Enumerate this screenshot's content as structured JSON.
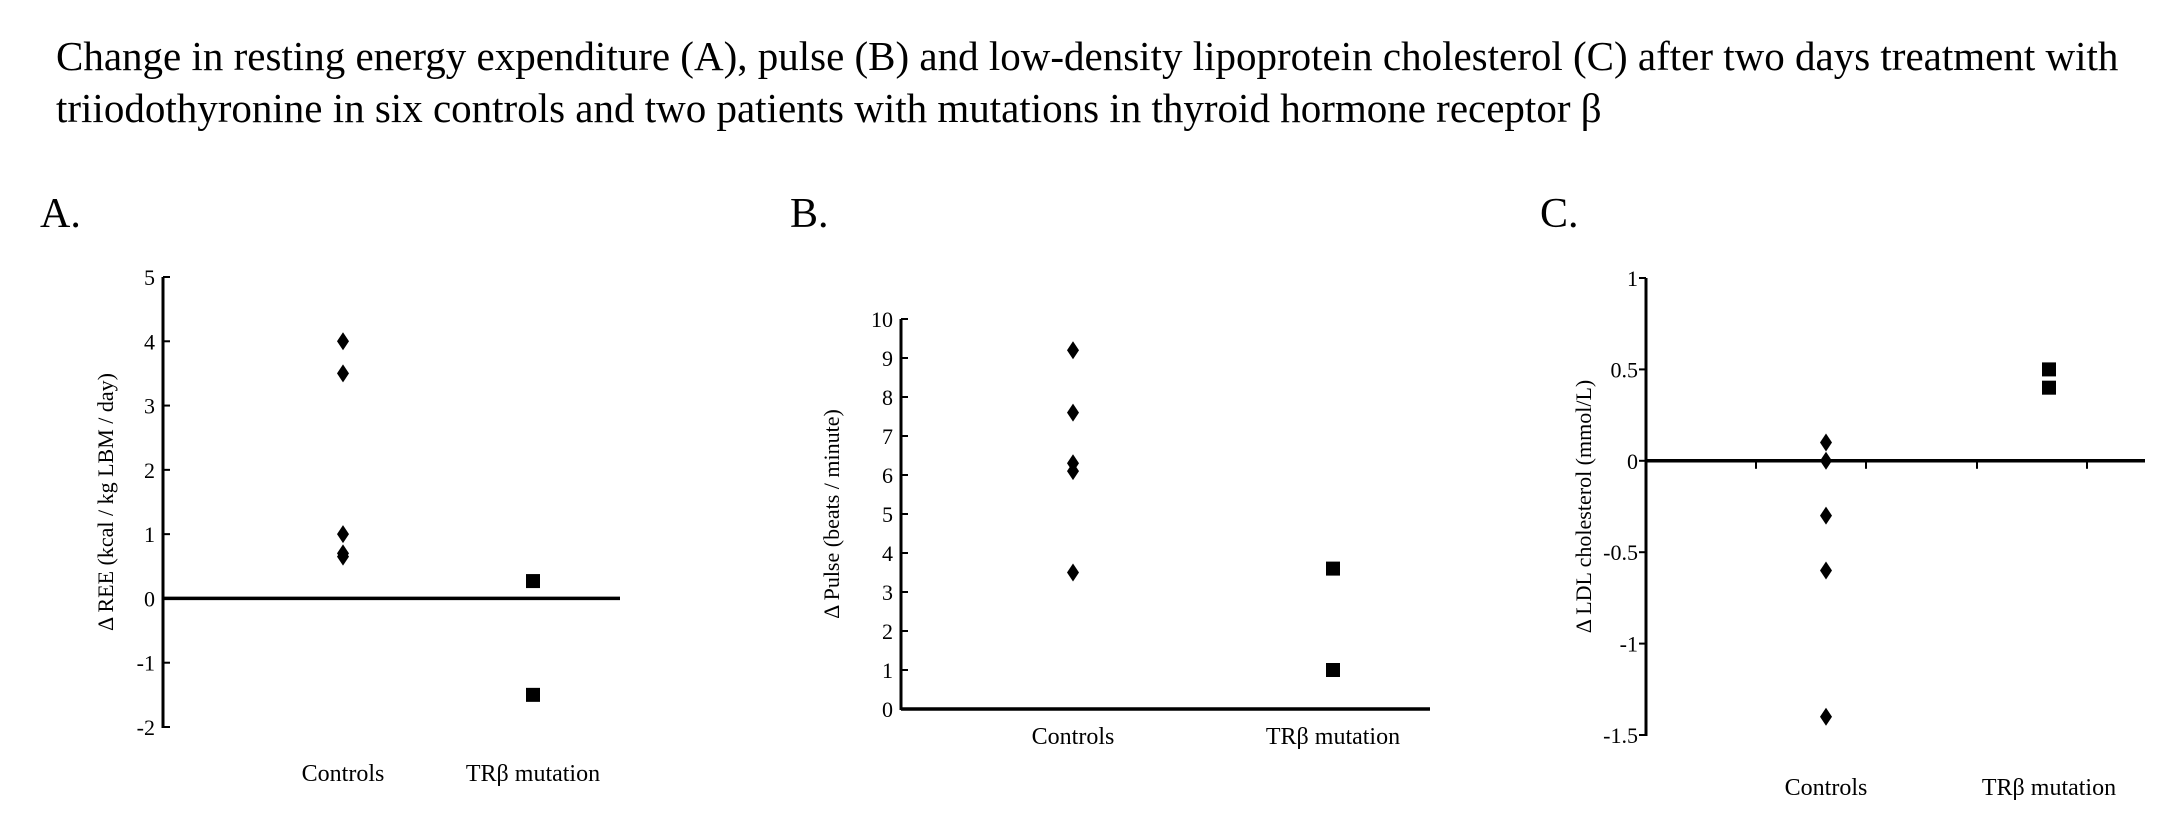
{
  "title": "Change in resting energy expenditure (A), pulse (B) and low-density lipoprotein cholesterol (C) after two days treatment with triiodothyronine in six controls and two patients with mutations in thyroid hormone receptor β",
  "chart_data": [
    {
      "type": "scatter",
      "panel_label": "A.",
      "ylabel": "Δ REE (kcal / kg LBM / day)",
      "ylim": [
        -2,
        5
      ],
      "yticks": [
        "5",
        "4",
        "3",
        "2",
        "1",
        "0",
        "-1",
        "-2"
      ],
      "categories": [
        "Controls",
        "TRβ mutation"
      ],
      "series": [
        {
          "category": "Controls",
          "marker": "diamond",
          "values": [
            4.0,
            3.5,
            1.0,
            0.7,
            0.65
          ]
        },
        {
          "category": "TRβ mutation",
          "marker": "square",
          "values": [
            0.27,
            -1.5
          ]
        }
      ]
    },
    {
      "type": "scatter",
      "panel_label": "B.",
      "ylabel": "Δ Pulse (beats / minute)",
      "ylim": [
        0,
        10
      ],
      "yticks": [
        "10",
        "9",
        "8",
        "7",
        "6",
        "5",
        "4",
        "3",
        "2",
        "1",
        "0"
      ],
      "categories": [
        "Controls",
        "TRβ mutation"
      ],
      "series": [
        {
          "category": "Controls",
          "marker": "diamond",
          "values": [
            9.2,
            7.6,
            6.3,
            6.1,
            3.5
          ]
        },
        {
          "category": "TRβ mutation",
          "marker": "square",
          "values": [
            3.6,
            1.0
          ]
        }
      ]
    },
    {
      "type": "scatter",
      "panel_label": "C.",
      "ylabel": "Δ LDL cholesterol (mmol/L)",
      "ylim": [
        -1.5,
        1
      ],
      "yticks": [
        "1",
        "0.5",
        "0",
        "-0.5",
        "-1",
        "-1.5"
      ],
      "categories": [
        "Controls",
        "TRβ mutation"
      ],
      "series": [
        {
          "category": "Controls",
          "marker": "diamond",
          "values": [
            0.1,
            0.0,
            -0.3,
            -0.6,
            -1.4
          ]
        },
        {
          "category": "TRβ mutation",
          "marker": "square",
          "values": [
            0.5,
            0.4
          ]
        }
      ]
    }
  ]
}
